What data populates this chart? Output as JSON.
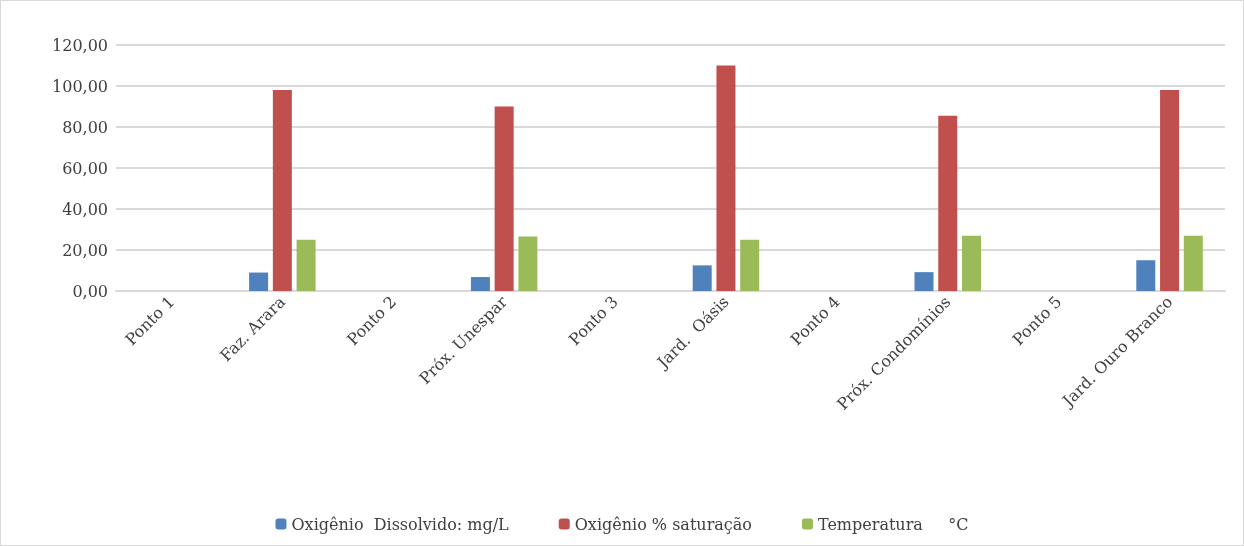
{
  "chart_data": {
    "type": "bar",
    "categories": [
      "Ponto 1",
      "Faz. Arara",
      "Ponto 2",
      "Próx. Unespar",
      "Ponto 3",
      "Jard.  Oásis",
      "Ponto 4",
      "Próx. Condomínios",
      "Ponto 5",
      "Jard. Ouro Branco"
    ],
    "series": [
      {
        "name": "Oxigênio  Dissolvido: mg/L",
        "color": "#4f81bd",
        "values": [
          null,
          9,
          null,
          6.8,
          null,
          12.5,
          null,
          9.2,
          null,
          15
        ]
      },
      {
        "name": "Oxigênio % saturação",
        "color": "#c0504d",
        "values": [
          null,
          98,
          null,
          90,
          null,
          110,
          null,
          85.5,
          null,
          98
        ]
      },
      {
        "name": "Temperatura     °C",
        "color": "#9bbb59",
        "values": [
          null,
          25,
          null,
          26.6,
          null,
          25,
          null,
          27,
          null,
          27
        ]
      }
    ],
    "ylim": [
      0,
      120
    ],
    "yticks": [
      {
        "value": 0,
        "label": "0,00"
      },
      {
        "value": 20,
        "label": "20,00"
      },
      {
        "value": 40,
        "label": "40,00"
      },
      {
        "value": 60,
        "label": "60,00"
      },
      {
        "value": 80,
        "label": "80,00"
      },
      {
        "value": 100,
        "label": "100,00"
      },
      {
        "value": 120,
        "label": "120,00"
      }
    ],
    "grid": "y",
    "legend": "bottom"
  }
}
